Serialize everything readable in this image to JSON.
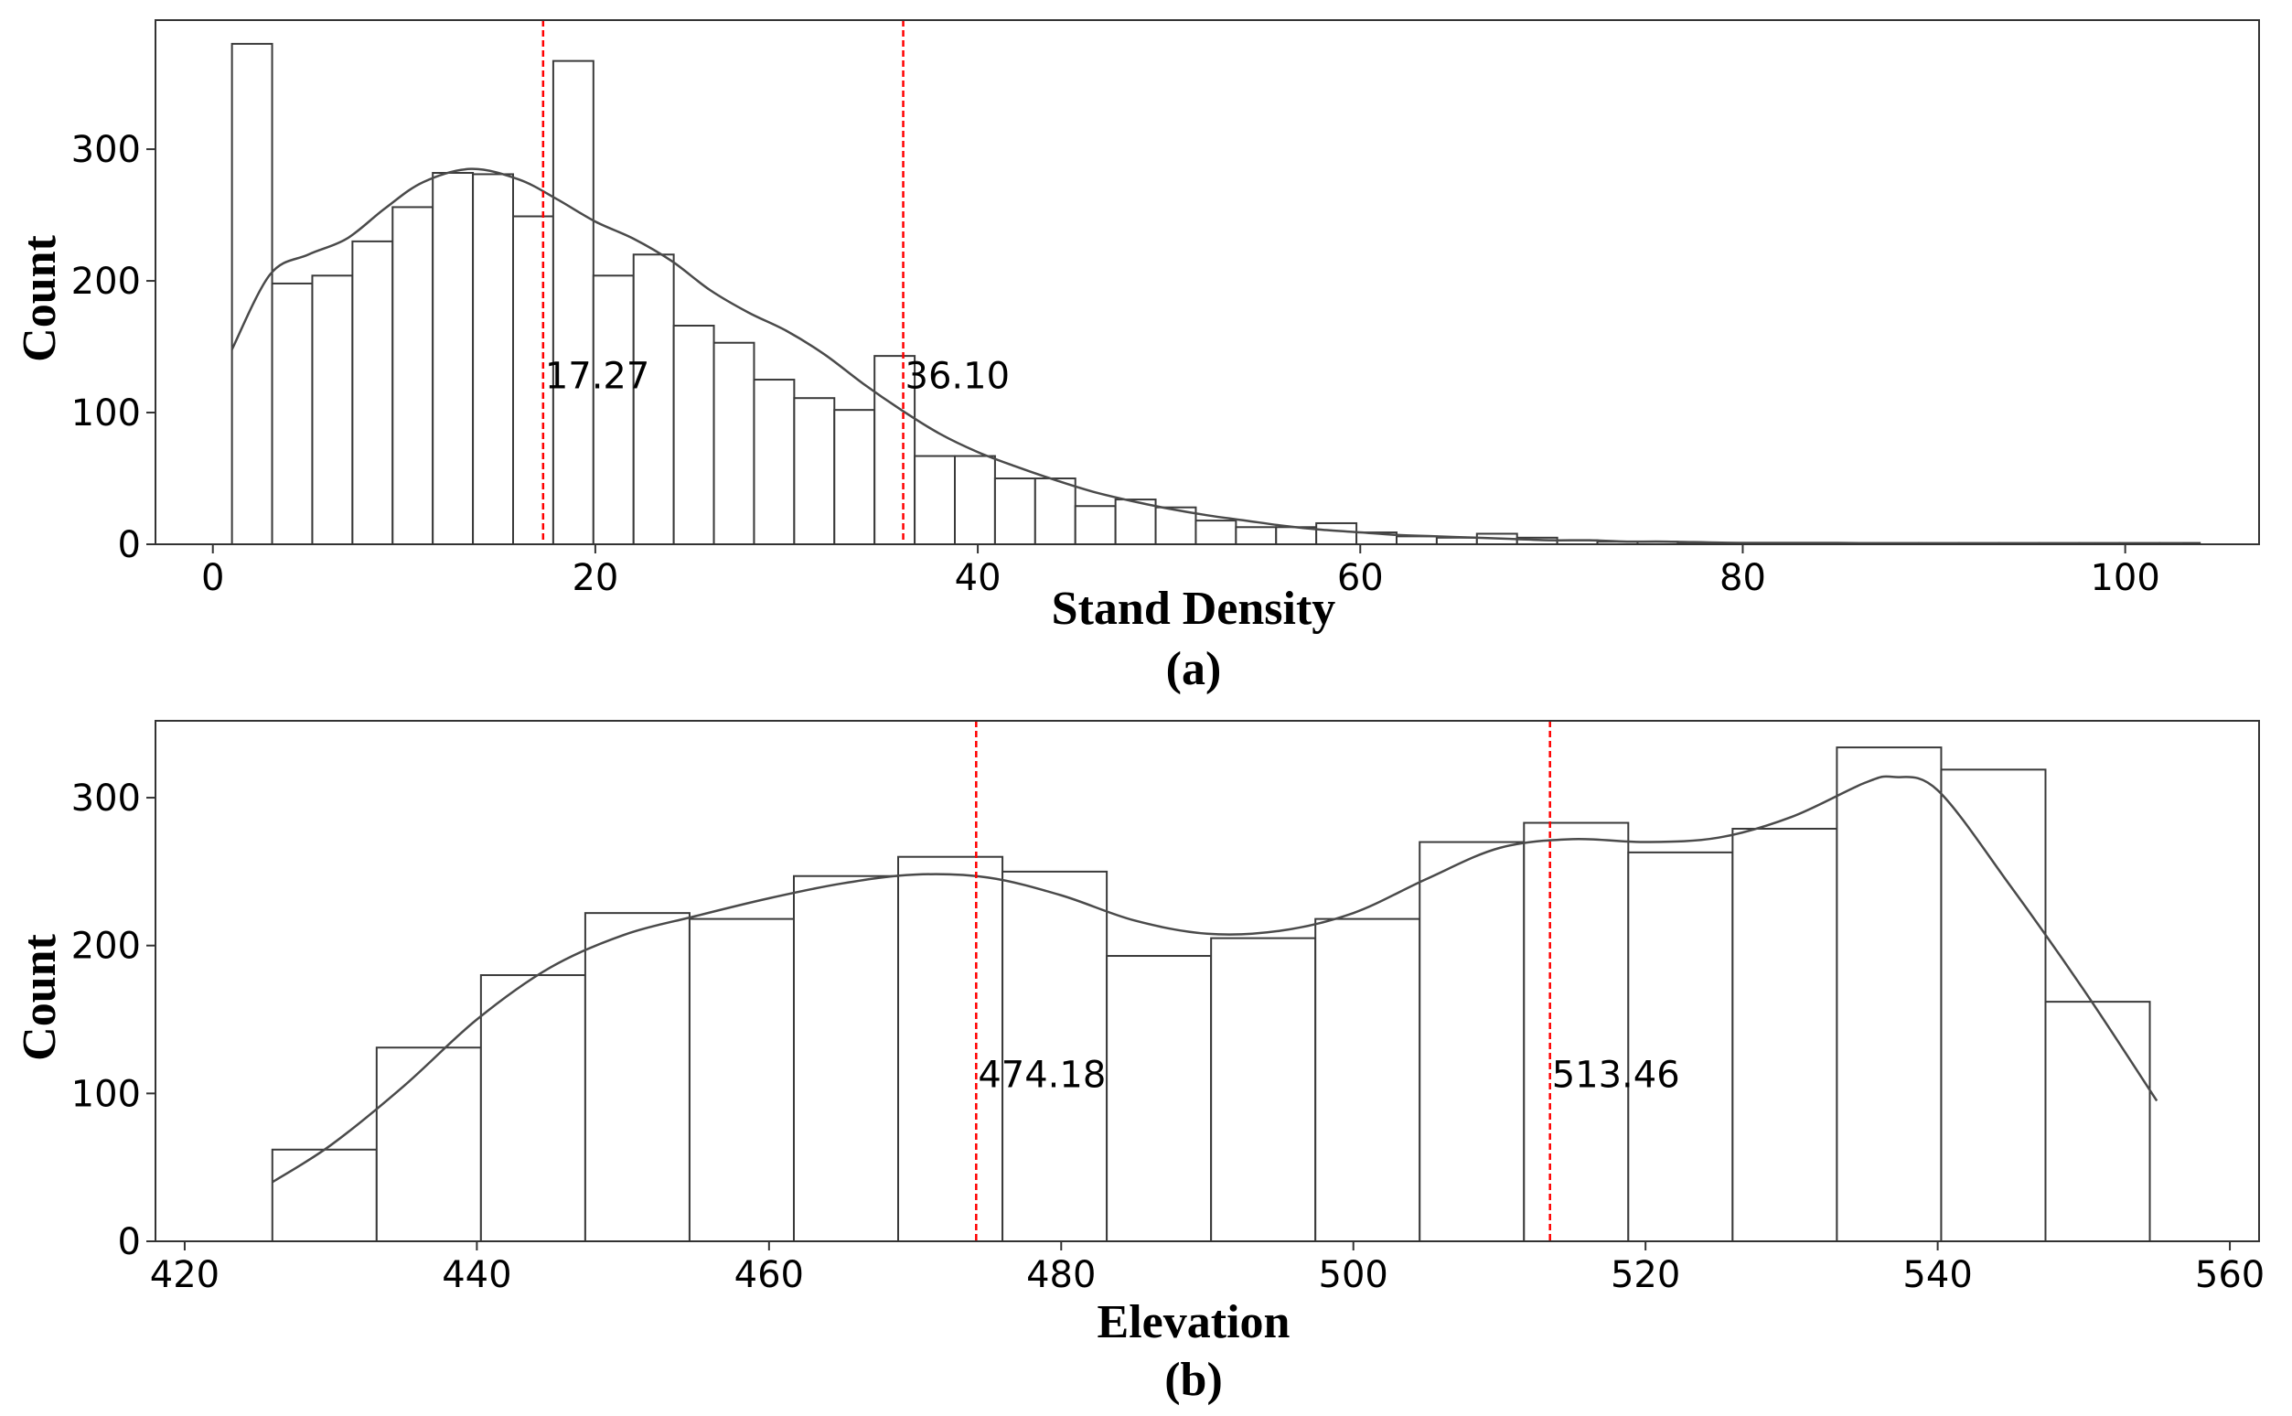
{
  "chart_data": [
    {
      "type": "histogram",
      "panel": "a",
      "caption": "(a)",
      "xlabel": "Stand Density",
      "ylabel": "Count",
      "xlim": [
        -3,
        107
      ],
      "ylim": [
        0,
        398
      ],
      "xticks": [
        0,
        20,
        40,
        60,
        80,
        100
      ],
      "yticks": [
        0,
        100,
        200,
        300
      ],
      "bin_start": 1.0,
      "bin_width": 2.1,
      "counts": [
        380,
        198,
        204,
        230,
        256,
        282,
        281,
        249,
        367,
        204,
        220,
        166,
        153,
        125,
        111,
        102,
        143,
        67,
        67,
        50,
        50,
        29,
        34,
        28,
        18,
        13,
        13,
        16,
        9,
        6,
        5,
        8,
        5,
        3,
        2,
        2,
        1,
        1,
        1,
        1,
        1,
        1,
        1,
        1,
        1,
        1,
        1,
        1,
        1
      ],
      "kde": {
        "x": [
          1,
          3,
          5,
          7,
          9,
          11,
          13.5,
          16,
          18,
          20,
          22,
          24,
          26,
          28,
          30,
          32,
          34,
          36,
          38,
          40,
          42,
          44,
          46,
          48,
          50,
          52,
          54,
          56,
          58,
          60,
          62,
          64,
          66,
          68,
          70,
          72,
          74,
          76,
          80,
          85,
          90,
          95,
          100,
          103
        ],
        "y": [
          148,
          205,
          220,
          232,
          255,
          275,
          285,
          277,
          262,
          245,
          232,
          215,
          193,
          176,
          162,
          144,
          122,
          102,
          84,
          70,
          59,
          49,
          40,
          33,
          27,
          22,
          18,
          14,
          11,
          9,
          7,
          6,
          5,
          4,
          3,
          3,
          2,
          2,
          1,
          1,
          0.5,
          0.5,
          0.3,
          0.2
        ]
      },
      "reference_lines": [
        {
          "x": 17.27,
          "label": "17.27"
        },
        {
          "x": 36.1,
          "label": "36.10"
        }
      ],
      "annotation_y": 128
    },
    {
      "type": "histogram",
      "panel": "b",
      "caption": "(b)",
      "xlabel": "Elevation",
      "ylabel": "Count",
      "xlim": [
        418,
        562
      ],
      "ylim": [
        0,
        352
      ],
      "xticks": [
        420,
        440,
        460,
        480,
        500,
        520,
        540,
        560
      ],
      "yticks": [
        0,
        100,
        200,
        300
      ],
      "bin_start": 426.0,
      "bin_width": 7.14,
      "counts": [
        62,
        131,
        180,
        222,
        218,
        247,
        260,
        250,
        193,
        205,
        218,
        270,
        283,
        263,
        279,
        334,
        319,
        162
      ],
      "kde": {
        "x": [
          426,
          430,
          435,
          440,
          445,
          450,
          455,
          460,
          465,
          470,
          475,
          480,
          485,
          490,
          495,
          500,
          505,
          510,
          515,
          520,
          525,
          530,
          535,
          537,
          540,
          545,
          550,
          555
        ],
        "y": [
          40,
          65,
          105,
          150,
          185,
          207,
          220,
          232,
          242,
          248,
          246,
          234,
          217,
          208,
          210,
          222,
          245,
          266,
          272,
          270,
          273,
          287,
          310,
          314,
          305,
          240,
          170,
          95
        ]
      },
      "reference_lines": [
        {
          "x": 474.18,
          "label": "474.18"
        },
        {
          "x": 513.46,
          "label": "513.46"
        }
      ],
      "annotation_y": 113
    }
  ],
  "colors": {
    "bar_fill": "#ffffff",
    "bar_edge": "#3a3a3a",
    "kde_line": "#4a4a4a",
    "reference_line": "#ff0000",
    "axes": "#333333"
  }
}
